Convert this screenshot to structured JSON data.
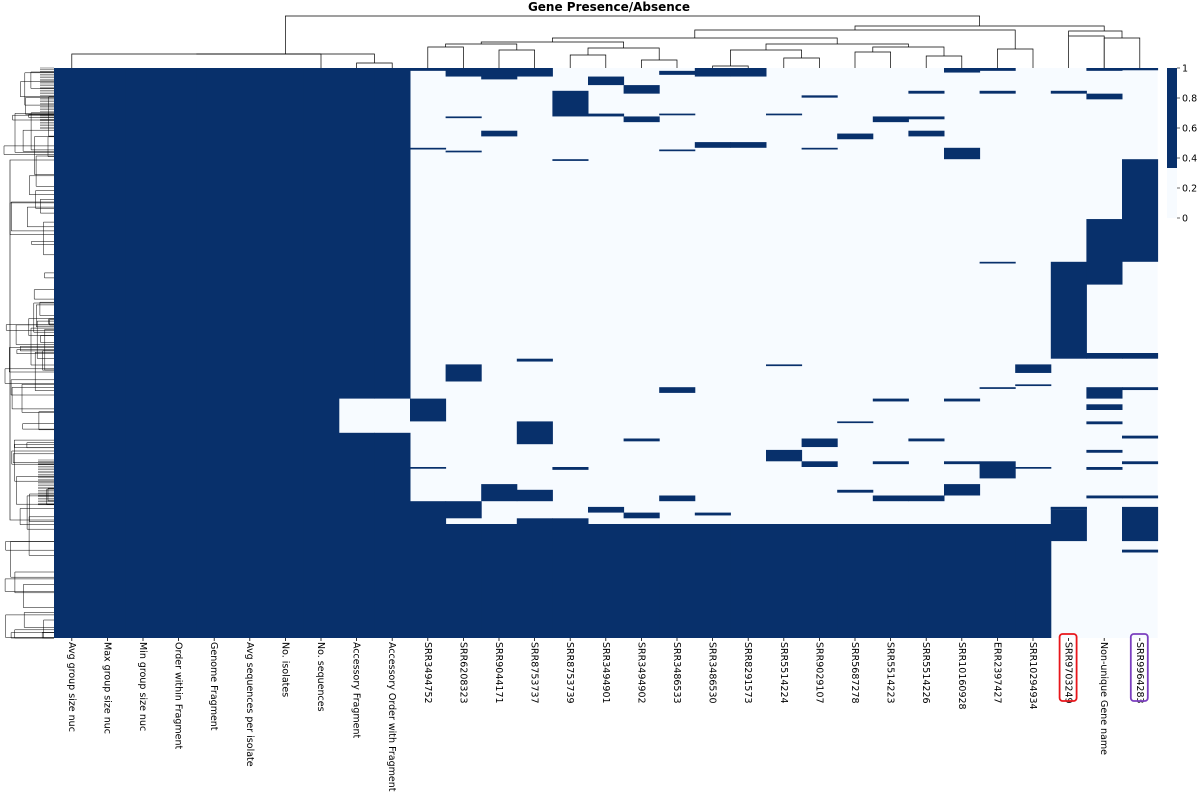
{
  "chart_data": {
    "type": "heatmap",
    "title": "Gene Presence/Absence",
    "colormap": {
      "low": "#f7fbff",
      "high": "#08306b"
    },
    "value_range": [
      0,
      1
    ],
    "colorbar_ticks": [
      "1",
      "0.8",
      "0.6",
      "0.4",
      "0.2",
      "0"
    ],
    "column_labels": [
      "Avg group size nuc",
      "Max group size nuc",
      "Min group size nuc",
      "Order within Fragment",
      "Genome Fragment",
      "Avg sequences per isolate",
      "No. isolates",
      "No. sequences",
      "Accessory Fragment",
      "Accessory Order with Fragment",
      "SRR3494752",
      "SRR6208323",
      "SRR9044171",
      "SRR8753737",
      "SRR8753739",
      "SRR3494901",
      "SRR3494902",
      "SRR3486533",
      "SRR3486530",
      "SRR8291573",
      "SRR5514224",
      "SRR9029107",
      "SRR5687278",
      "SRR5514223",
      "SRR5514226",
      "SRR10160928",
      "ERR2397427",
      "SRR10294934",
      "SRR9703249",
      "Non-unique Gene name",
      "SRR9964283"
    ],
    "highlighted_columns": [
      {
        "label": "SRR9703249",
        "color": "#e8161b"
      },
      {
        "label": "SRR9964283",
        "color": "#7b3fbf"
      }
    ],
    "row_fraction_note": "rows are genes (row labels not printed); values are approximate presence fractions along the row axis",
    "filled_columns": [
      "Avg group size nuc",
      "Max group size nuc",
      "Min group size nuc",
      "Order within Fragment",
      "Genome Fragment",
      "Avg sequences per isolate",
      "No. isolates",
      "No. sequences"
    ],
    "column_segments": [
      {
        "column": "Accessory Fragment",
        "present": [
          [
            0.0,
            0.58
          ],
          [
            0.64,
            1.0
          ]
        ]
      },
      {
        "column": "Accessory Order with Fragment",
        "present": [
          [
            0.0,
            0.58
          ],
          [
            0.64,
            1.0
          ]
        ]
      },
      {
        "column": "SRR3494752",
        "present": [
          [
            0.0,
            0.005
          ],
          [
            0.14,
            0.143
          ],
          [
            0.58,
            0.62
          ],
          [
            0.7,
            0.703
          ],
          [
            0.76,
            1.0
          ]
        ]
      },
      {
        "column": "SRR6208323",
        "present": [
          [
            0.0,
            0.015
          ],
          [
            0.085,
            0.088
          ],
          [
            0.145,
            0.148
          ],
          [
            0.52,
            0.55
          ],
          [
            0.76,
            0.79
          ],
          [
            0.8,
            1.0
          ]
        ]
      },
      {
        "column": "SRR9044171",
        "present": [
          [
            0.0,
            0.02
          ],
          [
            0.11,
            0.12
          ],
          [
            0.73,
            0.76
          ],
          [
            0.8,
            1.0
          ]
        ]
      },
      {
        "column": "SRR8753737",
        "present": [
          [
            0.0,
            0.015
          ],
          [
            0.51,
            0.515
          ],
          [
            0.62,
            0.66
          ],
          [
            0.74,
            0.76
          ],
          [
            0.79,
            1.0
          ]
        ]
      },
      {
        "column": "SRR8753739",
        "present": [
          [
            0.04,
            0.085
          ],
          [
            0.16,
            0.163
          ],
          [
            0.7,
            0.705
          ],
          [
            0.79,
            1.0
          ]
        ]
      },
      {
        "column": "SRR3494901",
        "present": [
          [
            0.015,
            0.03
          ],
          [
            0.08,
            0.085
          ],
          [
            0.77,
            0.78
          ],
          [
            0.8,
            1.0
          ]
        ]
      },
      {
        "column": "SRR3494902",
        "present": [
          [
            0.03,
            0.045
          ],
          [
            0.085,
            0.095
          ],
          [
            0.65,
            0.655
          ],
          [
            0.78,
            0.79
          ],
          [
            0.8,
            1.0
          ]
        ]
      },
      {
        "column": "SRR3486533",
        "present": [
          [
            0.005,
            0.012
          ],
          [
            0.08,
            0.083
          ],
          [
            0.143,
            0.146
          ],
          [
            0.56,
            0.57
          ],
          [
            0.75,
            0.76
          ],
          [
            0.8,
            1.0
          ]
        ]
      },
      {
        "column": "SRR3486530",
        "present": [
          [
            0.0,
            0.015
          ],
          [
            0.13,
            0.14
          ],
          [
            0.78,
            0.785
          ],
          [
            0.8,
            1.0
          ]
        ]
      },
      {
        "column": "SRR8291573",
        "present": [
          [
            0.0,
            0.015
          ],
          [
            0.13,
            0.14
          ],
          [
            0.8,
            1.0
          ]
        ]
      },
      {
        "column": "SRR5514224",
        "present": [
          [
            0.08,
            0.083
          ],
          [
            0.52,
            0.523
          ],
          [
            0.67,
            0.69
          ],
          [
            0.8,
            1.0
          ]
        ]
      },
      {
        "column": "SRR9029107",
        "present": [
          [
            0.048,
            0.052
          ],
          [
            0.14,
            0.143
          ],
          [
            0.65,
            0.665
          ],
          [
            0.69,
            0.7
          ],
          [
            0.8,
            1.0
          ]
        ]
      },
      {
        "column": "SRR5687278",
        "present": [
          [
            0.115,
            0.125
          ],
          [
            0.62,
            0.623
          ],
          [
            0.74,
            0.745
          ],
          [
            0.8,
            1.0
          ]
        ]
      },
      {
        "column": "SRR5514223",
        "present": [
          [
            0.085,
            0.095
          ],
          [
            0.58,
            0.585
          ],
          [
            0.69,
            0.695
          ],
          [
            0.75,
            0.76
          ],
          [
            0.8,
            1.0
          ]
        ]
      },
      {
        "column": "SRR5514226",
        "present": [
          [
            0.04,
            0.045
          ],
          [
            0.085,
            0.09
          ],
          [
            0.11,
            0.12
          ],
          [
            0.65,
            0.655
          ],
          [
            0.75,
            0.76
          ],
          [
            0.8,
            1.0
          ]
        ]
      },
      {
        "column": "SRR10160928",
        "present": [
          [
            0.0,
            0.008
          ],
          [
            0.14,
            0.16
          ],
          [
            0.58,
            0.585
          ],
          [
            0.69,
            0.695
          ],
          [
            0.73,
            0.75
          ],
          [
            0.8,
            1.0
          ]
        ]
      },
      {
        "column": "ERR2397427",
        "present": [
          [
            0.0,
            0.005
          ],
          [
            0.04,
            0.045
          ],
          [
            0.34,
            0.343
          ],
          [
            0.56,
            0.563
          ],
          [
            0.69,
            0.72
          ],
          [
            0.8,
            1.0
          ]
        ]
      },
      {
        "column": "SRR10294934",
        "present": [
          [
            0.52,
            0.535
          ],
          [
            0.555,
            0.558
          ],
          [
            0.7,
            0.703
          ],
          [
            0.8,
            1.0
          ]
        ]
      },
      {
        "column": "SRR9703249",
        "present": [
          [
            0.04,
            0.045
          ],
          [
            0.34,
            0.51
          ],
          [
            0.77,
            0.775
          ],
          [
            0.77,
            0.775
          ],
          [
            0.775,
            0.83
          ]
        ]
      },
      {
        "column": "Non-unique Gene name",
        "present": [
          [
            0.0,
            0.005
          ],
          [
            0.045,
            0.055
          ],
          [
            0.265,
            0.38
          ],
          [
            0.5,
            0.51
          ],
          [
            0.56,
            0.58
          ],
          [
            0.59,
            0.6
          ],
          [
            0.62,
            0.625
          ],
          [
            0.67,
            0.675
          ],
          [
            0.7,
            0.705
          ],
          [
            0.75,
            0.755
          ]
        ]
      },
      {
        "column": "SRR9964283",
        "present": [
          [
            0.0,
            0.004
          ],
          [
            0.16,
            0.34
          ],
          [
            0.5,
            0.51
          ],
          [
            0.56,
            0.565
          ],
          [
            0.645,
            0.65
          ],
          [
            0.69,
            0.695
          ],
          [
            0.75,
            0.755
          ],
          [
            0.77,
            0.83
          ],
          [
            0.845,
            0.85
          ]
        ]
      }
    ]
  }
}
